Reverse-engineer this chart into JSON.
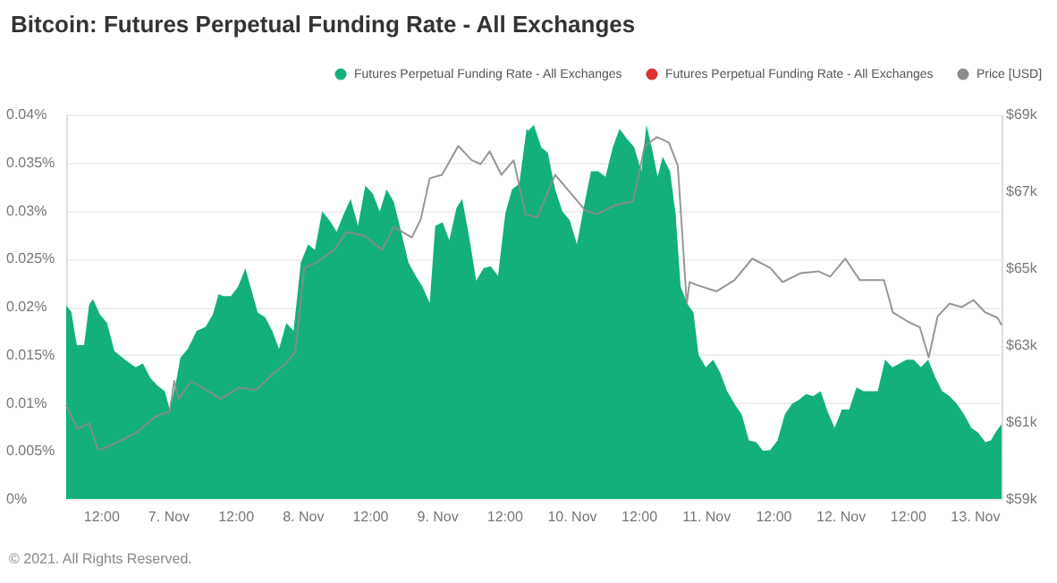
{
  "chart_data": {
    "type": "area",
    "title": "Bitcoin: Futures Perpetual Funding Rate - All Exchanges",
    "annotations": [
      "© 2021. All Rights Reserved."
    ],
    "xlim": [
      "2021-11-06T05:48",
      "2021-11-13T04:48"
    ],
    "xticks": [
      {
        "value": "2021-11-06T12:00",
        "label": "12:00"
      },
      {
        "value": "2021-11-07",
        "label": "7. Nov"
      },
      {
        "value": "2021-11-07T12:00",
        "label": "12:00"
      },
      {
        "value": "2021-11-08",
        "label": "8. Nov"
      },
      {
        "value": "2021-11-08T12:00",
        "label": "12:00"
      },
      {
        "value": "2021-11-09",
        "label": "9. Nov"
      },
      {
        "value": "2021-11-09T12:00",
        "label": "12:00"
      },
      {
        "value": "2021-11-10",
        "label": "10. Nov"
      },
      {
        "value": "2021-11-10T12:00",
        "label": "12:00"
      },
      {
        "value": "2021-11-11",
        "label": "11. Nov"
      },
      {
        "value": "2021-11-11T12:00",
        "label": "12:00"
      },
      {
        "value": "2021-11-12",
        "label": "12. Nov"
      },
      {
        "value": "2021-11-12T12:00",
        "label": "12:00"
      },
      {
        "value": "2021-11-13",
        "label": "13. Nov"
      }
    ],
    "ylim": [
      0,
      0.04
    ],
    "yticks": [
      {
        "value": 0,
        "label": "0%"
      },
      {
        "value": 0.005,
        "label": "0.005%"
      },
      {
        "value": 0.01,
        "label": "0.01%"
      },
      {
        "value": 0.015,
        "label": "0.015%"
      },
      {
        "value": 0.02,
        "label": "0.02%"
      },
      {
        "value": 0.025,
        "label": "0.025%"
      },
      {
        "value": 0.03,
        "label": "0.03%"
      },
      {
        "value": 0.035,
        "label": "0.035%"
      },
      {
        "value": 0.04,
        "label": "0.04%"
      }
    ],
    "y2lim": [
      59000,
      69000
    ],
    "y2ticks": [
      {
        "value": 59000,
        "label": "$59k"
      },
      {
        "value": 61000,
        "label": "$61k"
      },
      {
        "value": 63000,
        "label": "$63k"
      },
      {
        "value": 65000,
        "label": "$65k"
      },
      {
        "value": 67000,
        "label": "$67k"
      },
      {
        "value": 69000,
        "label": "$69k"
      }
    ],
    "grid": "y",
    "legend": "top right",
    "series": [
      {
        "name": "Futures Perpetual Funding Rate - All Exchanges",
        "color": "#13b07a",
        "x": [
          "2021-11-06T05:48",
          "2021-11-06T06:42",
          "2021-11-06T07:42",
          "2021-11-06T09:00",
          "2021-11-06T09:54",
          "2021-11-06T10:36",
          "2021-11-06T11:48",
          "2021-11-06T13:06",
          "2021-11-06T14:24",
          "2021-11-06T16:18",
          "2021-11-06T18:12",
          "2021-11-06T19:30",
          "2021-11-06T20:48",
          "2021-11-06T22:06",
          "2021-11-06T23:24",
          "2021-11-07T00:18",
          "2021-11-07T01:18",
          "2021-11-07T02:12",
          "2021-11-07T03:30",
          "2021-11-07T05:06",
          "2021-11-07T06:42",
          "2021-11-07T08:00",
          "2021-11-07T09:00",
          "2021-11-07T09:54",
          "2021-11-07T11:12",
          "2021-11-07T12:30",
          "2021-11-07T13:48",
          "2021-11-07T14:42",
          "2021-11-07T16:00",
          "2021-11-07T17:18",
          "2021-11-07T18:36",
          "2021-11-07T19:48",
          "2021-11-07T21:06",
          "2021-11-07T22:24",
          "2021-11-07T23:42",
          "2021-11-08T01:00",
          "2021-11-08T02:12",
          "2021-11-08T03:30",
          "2021-11-08T04:48",
          "2021-11-08T06:06",
          "2021-11-08T07:24",
          "2021-11-08T08:36",
          "2021-11-08T09:54",
          "2021-11-08T11:12",
          "2021-11-08T12:30",
          "2021-11-08T13:48",
          "2021-11-08T15:00",
          "2021-11-08T16:18",
          "2021-11-08T17:36",
          "2021-11-08T18:54",
          "2021-11-08T20:12",
          "2021-11-08T21:24",
          "2021-11-08T22:42",
          "2021-11-08T23:42",
          "2021-11-09T01:00",
          "2021-11-09T02:12",
          "2021-11-09T03:30",
          "2021-11-09T04:30",
          "2021-11-09T05:48",
          "2021-11-09T07:00",
          "2021-11-09T08:18",
          "2021-11-09T09:36",
          "2021-11-09T10:54",
          "2021-11-09T12:12",
          "2021-11-09T13:24",
          "2021-11-09T14:42",
          "2021-11-09T16:00",
          "2021-11-09T16:18",
          "2021-11-09T17:18",
          "2021-11-09T18:36",
          "2021-11-09T19:48",
          "2021-11-09T21:06",
          "2021-11-09T22:24",
          "2021-11-09T23:42",
          "2021-11-10T01:00",
          "2021-11-10T02:12",
          "2021-11-10T03:30",
          "2021-11-10T04:48",
          "2021-11-10T06:06",
          "2021-11-10T07:24",
          "2021-11-10T08:36",
          "2021-11-10T09:54",
          "2021-11-10T11:12",
          "2021-11-10T12:30",
          "2021-11-10T13:24",
          "2021-11-10T14:24",
          "2021-11-10T15:24",
          "2021-11-10T16:18",
          "2021-11-10T17:36",
          "2021-11-10T18:36",
          "2021-11-10T19:30",
          "2021-11-10T20:48",
          "2021-11-10T21:48",
          "2021-11-10T22:42",
          "2021-11-11T00:00",
          "2021-11-11T01:18",
          "2021-11-11T02:36",
          "2021-11-11T03:48",
          "2021-11-11T05:06",
          "2021-11-11T06:24",
          "2021-11-11T07:42",
          "2021-11-11T09:00",
          "2021-11-11T10:12",
          "2021-11-11T11:30",
          "2021-11-11T12:48",
          "2021-11-11T14:06",
          "2021-11-11T15:24",
          "2021-11-11T16:36",
          "2021-11-11T17:54",
          "2021-11-11T19:12",
          "2021-11-11T20:30",
          "2021-11-11T21:48",
          "2021-11-11T23:00",
          "2021-11-12T00:18",
          "2021-11-12T01:36",
          "2021-11-12T02:54",
          "2021-11-12T04:12",
          "2021-11-12T05:24",
          "2021-11-12T06:42",
          "2021-11-12T08:00",
          "2021-11-12T09:18",
          "2021-11-12T10:36",
          "2021-11-12T11:48",
          "2021-11-12T13:06",
          "2021-11-12T14:24",
          "2021-11-12T15:42",
          "2021-11-12T17:00",
          "2021-11-12T18:12",
          "2021-11-12T19:30",
          "2021-11-12T20:48",
          "2021-11-12T22:06",
          "2021-11-12T23:24",
          "2021-11-13T00:36",
          "2021-11-13T01:54",
          "2021-11-13T02:54",
          "2021-11-13T03:48",
          "2021-11-13T04:48"
        ],
        "values": [
          0.0201,
          0.0195,
          0.016,
          0.016,
          0.0202,
          0.0208,
          0.0192,
          0.0183,
          0.0154,
          0.0145,
          0.0137,
          0.0141,
          0.0126,
          0.0118,
          0.0112,
          0.0093,
          0.0118,
          0.0147,
          0.0156,
          0.0175,
          0.0179,
          0.0192,
          0.0213,
          0.0211,
          0.0211,
          0.0221,
          0.024,
          0.0221,
          0.0194,
          0.0189,
          0.0175,
          0.0156,
          0.0183,
          0.0175,
          0.0246,
          0.0265,
          0.0259,
          0.0299,
          0.029,
          0.0278,
          0.0297,
          0.0312,
          0.0284,
          0.0326,
          0.0318,
          0.0299,
          0.0322,
          0.0309,
          0.0278,
          0.0246,
          0.0232,
          0.0221,
          0.0204,
          0.0284,
          0.0288,
          0.0269,
          0.0303,
          0.0312,
          0.0271,
          0.0227,
          0.024,
          0.0242,
          0.0232,
          0.0297,
          0.0322,
          0.0328,
          0.0385,
          0.0383,
          0.0389,
          0.0366,
          0.036,
          0.0322,
          0.0299,
          0.029,
          0.0265,
          0.0303,
          0.0341,
          0.0341,
          0.0335,
          0.0366,
          0.0385,
          0.0375,
          0.0366,
          0.0341,
          0.0389,
          0.0364,
          0.0335,
          0.0356,
          0.0341,
          0.0297,
          0.0221,
          0.0202,
          0.0194,
          0.015,
          0.0137,
          0.0145,
          0.0131,
          0.0112,
          0.0099,
          0.0088,
          0.0061,
          0.0059,
          0.005,
          0.0051,
          0.0061,
          0.0088,
          0.0099,
          0.0103,
          0.0109,
          0.0107,
          0.0112,
          0.009,
          0.0074,
          0.0093,
          0.0093,
          0.0116,
          0.0112,
          0.0112,
          0.0112,
          0.0145,
          0.0137,
          0.0141,
          0.0145,
          0.0145,
          0.0137,
          0.0145,
          0.0126,
          0.0112,
          0.0107,
          0.0099,
          0.0088,
          0.0074,
          0.0069,
          0.0059,
          0.0061,
          0.007,
          0.0078
        ]
      },
      {
        "name": "Futures Perpetual Funding Rate - All Exchanges",
        "color": "#e0302f"
      },
      {
        "name": "Price [USD]",
        "type": "line",
        "axis": "y2",
        "color": "#8c8c8c",
        "x": [
          "2021-11-06T05:48",
          "2021-11-06T07:48",
          "2021-11-06T09:54",
          "2021-11-06T11:30",
          "2021-11-06T13:06",
          "2021-11-06T15:18",
          "2021-11-06T18:30",
          "2021-11-06T21:42",
          "2021-11-07T00:18",
          "2021-11-07T01:06",
          "2021-11-07T01:54",
          "2021-11-07T04:06",
          "2021-11-07T06:42",
          "2021-11-07T09:24",
          "2021-11-07T12:36",
          "2021-11-07T15:48",
          "2021-11-07T18:30",
          "2021-11-07T21:06",
          "2021-11-07T22:42",
          "2021-11-08T00:18",
          "2021-11-08T02:30",
          "2021-11-08T05:42",
          "2021-11-08T07:48",
          "2021-11-08T11:00",
          "2021-11-08T14:12",
          "2021-11-08T16:18",
          "2021-11-08T19:30",
          "2021-11-08T21:06",
          "2021-11-08T22:42",
          "2021-11-09T00:54",
          "2021-11-09T03:48",
          "2021-11-09T06:12",
          "2021-11-09T07:48",
          "2021-11-09T09:24",
          "2021-11-09T11:30",
          "2021-11-09T13:42",
          "2021-11-09T15:48",
          "2021-11-09T17:54",
          "2021-11-09T21:06",
          "2021-11-10T00:18",
          "2021-11-10T02:30",
          "2021-11-10T04:36",
          "2021-11-10T07:48",
          "2021-11-10T11:00",
          "2021-11-10T13:06",
          "2021-11-10T15:18",
          "2021-11-10T17:24",
          "2021-11-10T19:00",
          "2021-11-10T20:36",
          "2021-11-10T21:06",
          "2021-11-10T22:42",
          "2021-11-11T01:54",
          "2021-11-11T05:06",
          "2021-11-11T08:18",
          "2021-11-11T11:30",
          "2021-11-11T13:42",
          "2021-11-11T16:54",
          "2021-11-11T20:06",
          "2021-11-11T22:12",
          "2021-11-12T00:54",
          "2021-11-12T03:30",
          "2021-11-12T07:48",
          "2021-11-12T09:24",
          "2021-11-12T12:06",
          "2021-11-12T14:12",
          "2021-11-12T15:48",
          "2021-11-12T17:24",
          "2021-11-12T19:30",
          "2021-11-12T21:42",
          "2021-11-12T23:48",
          "2021-11-13T01:54",
          "2021-11-13T04:06",
          "2021-11-13T04:48"
        ],
        "values": [
          61440,
          60820,
          60970,
          60270,
          60350,
          60500,
          60740,
          61140,
          61280,
          62070,
          61600,
          62070,
          61840,
          61600,
          61890,
          61840,
          62220,
          62540,
          62820,
          65010,
          65150,
          65480,
          65940,
          65850,
          65480,
          66080,
          65800,
          66270,
          67340,
          67430,
          68180,
          67810,
          67710,
          68040,
          67430,
          67810,
          66410,
          66320,
          67430,
          66880,
          66500,
          66410,
          66640,
          66740,
          68180,
          68410,
          68270,
          67670,
          64080,
          64640,
          64550,
          64400,
          64690,
          65250,
          65010,
          64640,
          64870,
          64920,
          64780,
          65250,
          64690,
          64690,
          63850,
          63610,
          63470,
          62680,
          63750,
          64080,
          63990,
          64170,
          63850,
          63710,
          63520
        ]
      }
    ]
  }
}
